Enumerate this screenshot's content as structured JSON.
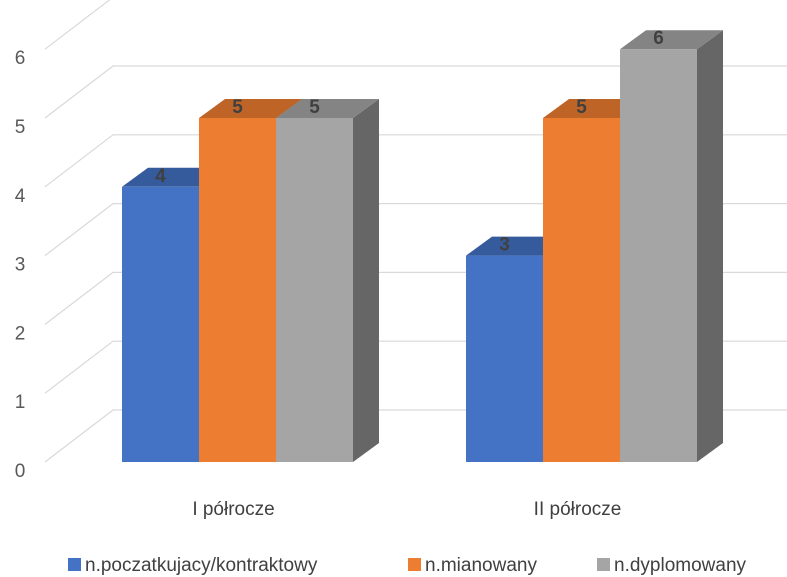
{
  "chart_data": {
    "type": "bar",
    "style": "3d-clustered-column",
    "categories": [
      "I półrocze",
      "II półrocze"
    ],
    "series": [
      {
        "name": "n.poczatkujacy/kontraktowy",
        "values": [
          4,
          3
        ],
        "color": "#4472C4"
      },
      {
        "name": "n.mianowany",
        "values": [
          5,
          5
        ],
        "color": "#ED7D31"
      },
      {
        "name": "n.dyplomowany",
        "values": [
          5,
          6
        ],
        "color": "#A5A5A5"
      }
    ],
    "yticks": [
      "0",
      "1",
      "2",
      "3",
      "4",
      "5",
      "6"
    ],
    "ylim": [
      0,
      6
    ],
    "grid": true,
    "data_labels": true,
    "legend_position": "bottom"
  }
}
